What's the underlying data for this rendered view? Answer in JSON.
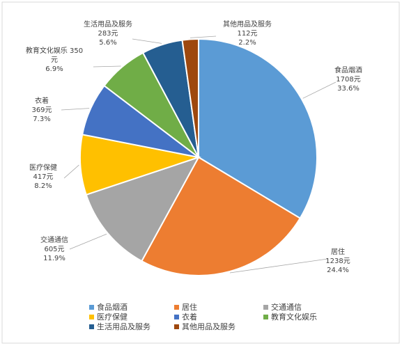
{
  "chart_data": {
    "type": "pie",
    "slices": [
      {
        "name": "食品烟酒",
        "value": 1708,
        "value_text": "1708元",
        "pct_text": "33.6%",
        "color": "#5B9BD5"
      },
      {
        "name": "居住",
        "value": 1238,
        "value_text": "1238元",
        "pct_text": "24.4%",
        "color": "#ED7D31"
      },
      {
        "name": "交通通信",
        "value": 605,
        "value_text": "605元",
        "pct_text": "11.9%",
        "color": "#A5A5A5"
      },
      {
        "name": "医疗保健",
        "value": 417,
        "value_text": "417元",
        "pct_text": "8.2%",
        "color": "#FFC000"
      },
      {
        "name": "衣着",
        "value": 369,
        "value_text": "369元",
        "pct_text": "7.3%",
        "color": "#4472C4"
      },
      {
        "name": "教育文化娱乐",
        "value": 350,
        "value_text": "350",
        "value_text2": "元",
        "pct_text": "6.9%",
        "color": "#70AD47"
      },
      {
        "name": "生活用品及服务",
        "value": 283,
        "value_text": "283元",
        "pct_text": "5.6%",
        "color": "#255E91"
      },
      {
        "name": "其他用品及服务",
        "value": 112,
        "value_text": "112元",
        "pct_text": "2.2%",
        "color": "#9E480E"
      }
    ],
    "legend_position": "bottom"
  }
}
